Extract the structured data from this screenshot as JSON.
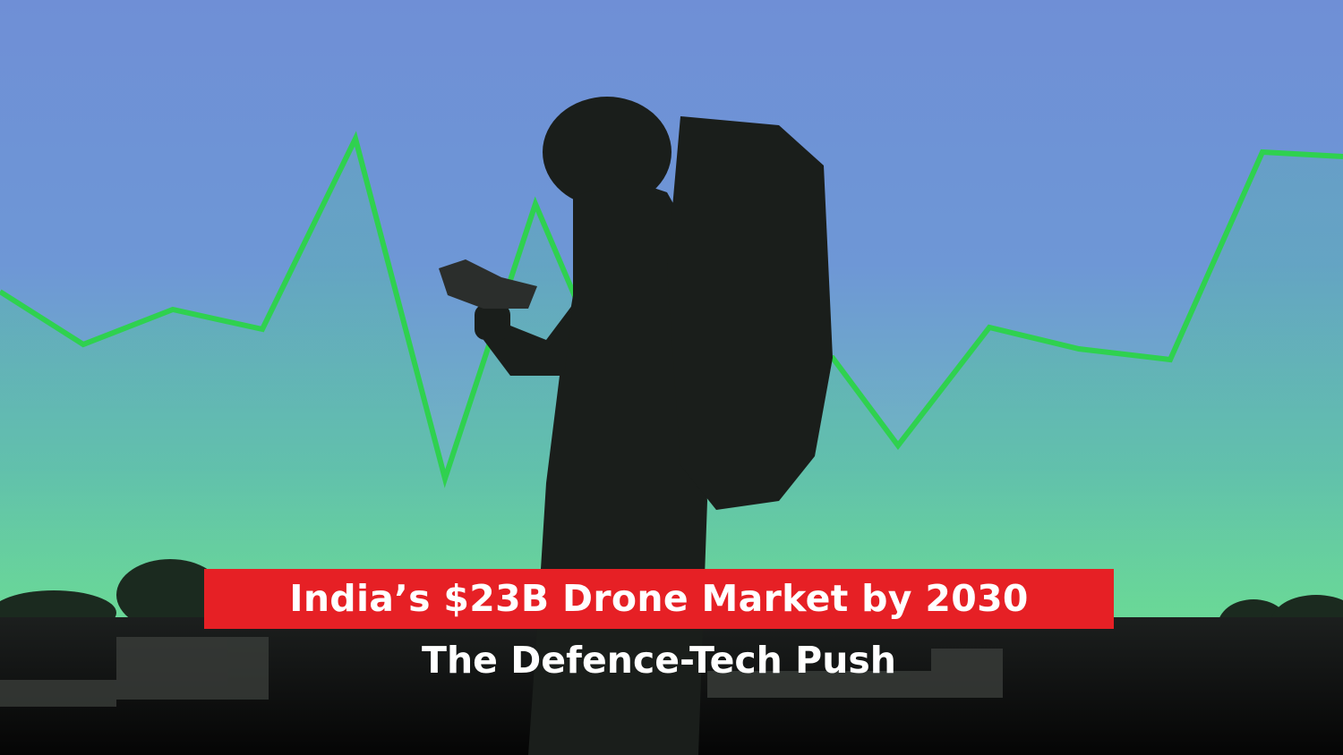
{
  "headline": {
    "title": "India’s $23B Drone Market by 2030",
    "subtitle": "The Defence-Tech Push"
  }
}
